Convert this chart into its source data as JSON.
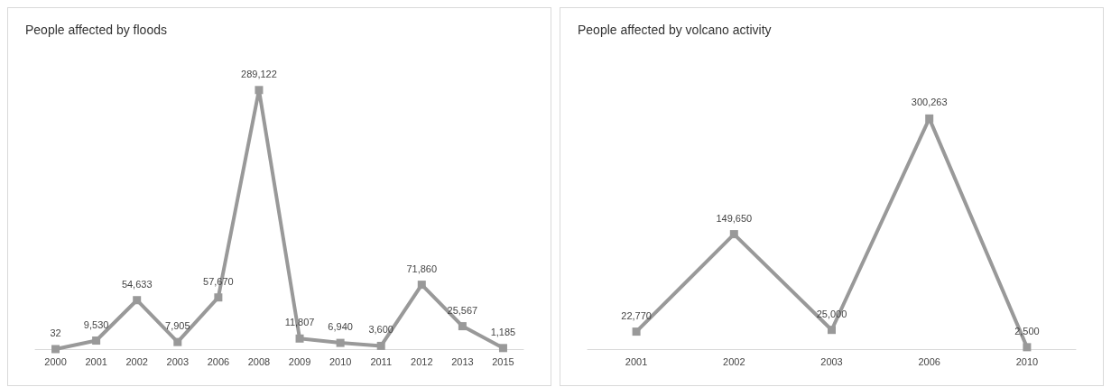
{
  "chart_data": [
    {
      "type": "line",
      "title": "People affected by floods",
      "categories": [
        "2000",
        "2001",
        "2002",
        "2003",
        "2006",
        "2008",
        "2009",
        "2010",
        "2011",
        "2012",
        "2013",
        "2015"
      ],
      "series": [
        {
          "color": "#999999",
          "values": [
            32,
            9530,
            54633,
            7905,
            57670,
            289122,
            11807,
            6940,
            3600,
            71860,
            25567,
            1185
          ],
          "value_labels": [
            "32",
            "9,530",
            "54,633",
            "7,905",
            "57,670",
            "289,122",
            "11,807",
            "6,940",
            "3,600",
            "71,860",
            "25,567",
            "1,185"
          ]
        }
      ],
      "marker": "square"
    },
    {
      "type": "line",
      "title": "People affected by volcano activity",
      "categories": [
        "2001",
        "2002",
        "2003",
        "2006",
        "2010"
      ],
      "series": [
        {
          "color": "#999999",
          "values": [
            22770,
            149650,
            25000,
            300263,
            2500
          ],
          "value_labels": [
            "22,770",
            "149,650",
            "25,000",
            "300,263",
            "2,500"
          ]
        }
      ],
      "marker": "square"
    }
  ]
}
